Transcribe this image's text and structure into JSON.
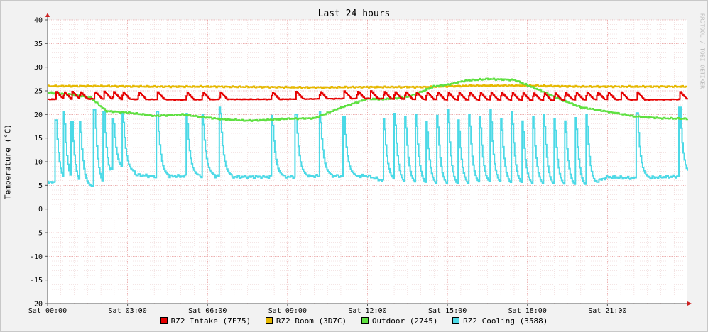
{
  "chart_data": {
    "type": "line",
    "title": "Last 24 hours",
    "ylabel": "Temperature (°C)",
    "watermark": "RRDTOOL / TOBI OETIKER",
    "ylim": [
      -20,
      40
    ],
    "y_ticks": [
      "40",
      "35",
      "30",
      "25",
      "20",
      "15",
      "10",
      "5",
      "0",
      "-5",
      "-10",
      "-15",
      "-20"
    ],
    "x_ticks": [
      "Sat 00:00",
      "Sat 03:00",
      "Sat 06:00",
      "Sat 09:00",
      "Sat 12:00",
      "Sat 15:00",
      "Sat 18:00",
      "Sat 21:00"
    ],
    "x_tick_hours": [
      0,
      3,
      6,
      9,
      12,
      15,
      18,
      21
    ],
    "x_range_hours": [
      0,
      24
    ],
    "grid": true,
    "legend_position": "bottom",
    "series": [
      {
        "name": "RZ2 Intake (7F75)",
        "color": "#e60000",
        "style": "cycle",
        "base": 23.2,
        "peak": 24.8,
        "cycle_hours": [
          0.3,
          0.6,
          0.9,
          1.2,
          1.75,
          2.1,
          2.45,
          2.8,
          3.4,
          4.1,
          5.2,
          5.8,
          6.45,
          8.4,
          9.3,
          10.2,
          11.1,
          11.6,
          12.1,
          12.6,
          13.0,
          13.4,
          13.8,
          14.2,
          14.6,
          15.0,
          15.4,
          15.8,
          16.2,
          16.6,
          17.0,
          17.4,
          17.8,
          18.2,
          18.6,
          19.0,
          19.4,
          19.8,
          20.2,
          20.6,
          21.0,
          21.5,
          22.1,
          23.7
        ],
        "values": [
          23.2,
          23.3,
          23.2,
          23.1,
          23.2,
          23.2,
          23.3,
          23.4,
          23.2,
          23.1,
          23.1,
          23.0,
          23.2,
          23.1,
          23.2
        ]
      },
      {
        "name": "RZ2 Room (3D7C)",
        "color": "#e6b800",
        "style": "line",
        "x_hours": [
          0,
          2,
          4,
          6,
          8,
          10,
          12,
          14,
          16,
          18,
          20,
          22,
          24
        ],
        "values": [
          26.0,
          26.0,
          25.9,
          25.9,
          25.8,
          25.7,
          25.8,
          25.8,
          26.1,
          26.1,
          25.9,
          25.9,
          25.9
        ]
      },
      {
        "name": "Outdoor (2745)",
        "color": "#5ee040",
        "style": "line",
        "x_hours": [
          0,
          1,
          1.6,
          2.2,
          3,
          4,
          5,
          6.5,
          7.5,
          8,
          9,
          10,
          11,
          12,
          12.5,
          13,
          13.5,
          14,
          14.5,
          15,
          15.7,
          16.5,
          17.5,
          18.5,
          19.3,
          20,
          21,
          22,
          23,
          24
        ],
        "values": [
          24.6,
          24.2,
          23.5,
          20.7,
          20.4,
          19.7,
          20.0,
          19.0,
          18.7,
          18.8,
          19.1,
          19.2,
          21.5,
          23.3,
          23.2,
          23.4,
          23.7,
          24.8,
          26.0,
          26.3,
          27.2,
          27.5,
          27.3,
          25.0,
          23.0,
          21.5,
          20.6,
          19.6,
          19.2,
          19.1
        ]
      },
      {
        "name": "RZ2 Cooling (3588)",
        "color": "#4cd9e6",
        "style": "spikes",
        "base_x_hours": [
          0,
          1,
          2,
          2.3,
          3,
          4,
          6,
          7,
          9,
          10,
          12,
          13,
          15,
          16,
          18,
          20,
          21,
          22,
          24
        ],
        "base_values": [
          5.8,
          4.6,
          4.5,
          8.5,
          7.4,
          6.9,
          7.0,
          6.8,
          6.8,
          7.0,
          7.0,
          5.2,
          4.6,
          5.2,
          4.8,
          4.5,
          6.8,
          6.5,
          7.0
        ],
        "spike_hours": [
          0.3,
          0.6,
          0.9,
          1.2,
          1.75,
          2.1,
          2.45,
          2.8,
          4.1,
          5.2,
          5.8,
          6.45,
          8.4,
          9.3,
          10.2,
          11.1,
          12.6,
          13.0,
          13.4,
          13.8,
          14.2,
          14.6,
          15.0,
          15.4,
          15.8,
          16.2,
          16.6,
          17.0,
          17.4,
          17.8,
          18.2,
          18.6,
          19.0,
          19.4,
          19.8,
          20.2,
          22.1,
          23.7
        ],
        "spike_peaks": [
          18.8,
          20.5,
          18.5,
          18.5,
          21.0,
          20.6,
          19.0,
          20.4,
          20.6,
          20.2,
          20.0,
          21.5,
          19.8,
          20.0,
          20.5,
          19.5,
          19.0,
          20.2,
          19.5,
          20.0,
          18.5,
          19.8,
          21.0,
          18.8,
          20.0,
          19.5,
          21.0,
          19.0,
          20.5,
          18.6,
          19.5,
          20.0,
          19.0,
          18.6,
          19.3,
          20.0,
          20.3,
          21.5
        ]
      }
    ]
  }
}
